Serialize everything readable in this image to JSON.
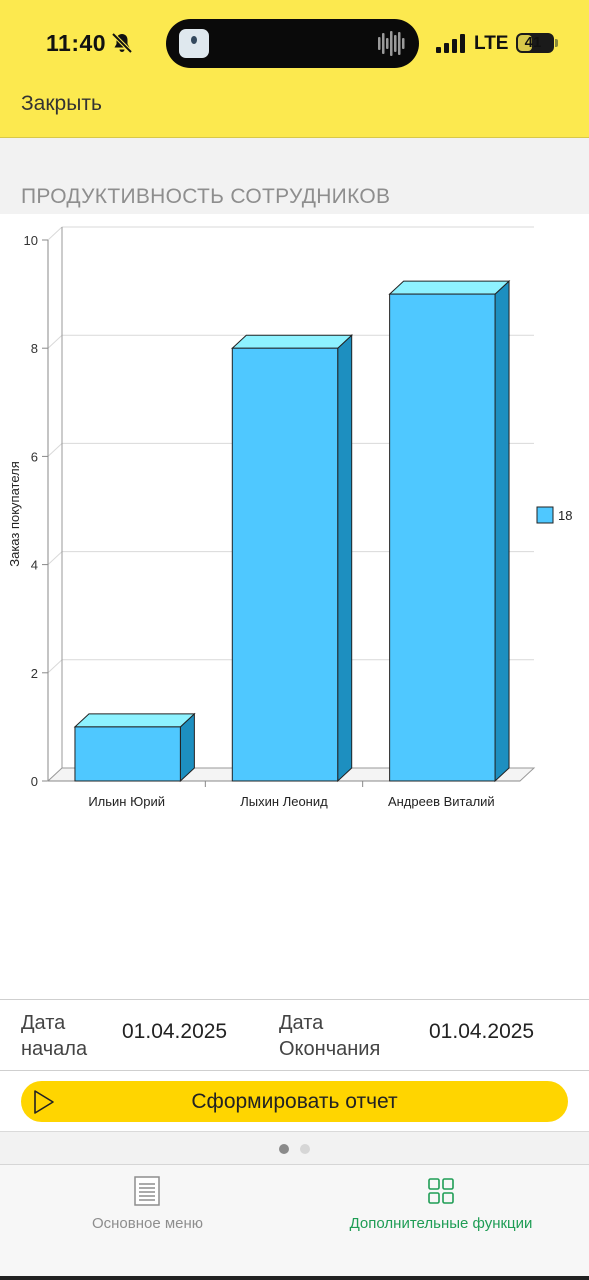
{
  "status_bar": {
    "time": "11:40",
    "network": "LTE",
    "battery": "41",
    "battery_level": 0.41,
    "icons": [
      "bell-slash-icon",
      "signal-icon",
      "battery-icon"
    ]
  },
  "nav": {
    "close_label": "Закрыть"
  },
  "section": {
    "title": "ПРОДУКТИВНОСТЬ СОТРУДНИКОВ"
  },
  "chart_data": {
    "type": "bar",
    "categories": [
      "Ильин Юрий",
      "Лыхин Леонид",
      "Андреев Виталий"
    ],
    "series": [
      {
        "name": "18",
        "values": [
          1,
          8,
          9
        ],
        "color": "#4fc8ff"
      }
    ],
    "ylabel": "Заказ покупателя",
    "xlabel": "",
    "ylim": [
      0,
      10
    ],
    "yticks": [
      0,
      2,
      4,
      6,
      8,
      10
    ],
    "grid": true,
    "legend_position": "right",
    "style": "3d"
  },
  "dates": {
    "start_label_line1": "Дата",
    "start_label_line2": "начала",
    "start_value": "01.04.2025",
    "end_label_line1": "Дата",
    "end_label_line2": "Окончания",
    "end_value": "01.04.2025"
  },
  "report_button": {
    "label": "Сформировать отчет"
  },
  "pager": {
    "pages": 2,
    "current": 0
  },
  "tabs": [
    {
      "label": "Основное меню",
      "icon": "document-icon",
      "active": false
    },
    {
      "label": "Дополнительные функции",
      "icon": "grid-icon",
      "active": true
    }
  ],
  "colors": {
    "accent_yellow": "#fce94f",
    "button_yellow": "#ffd500",
    "bar_front": "#4fc8ff",
    "bar_top": "#8ef2ff",
    "bar_side": "#1d8fc0",
    "active_tab": "#1f9d55",
    "inactive_tab": "#8e8e8e"
  }
}
